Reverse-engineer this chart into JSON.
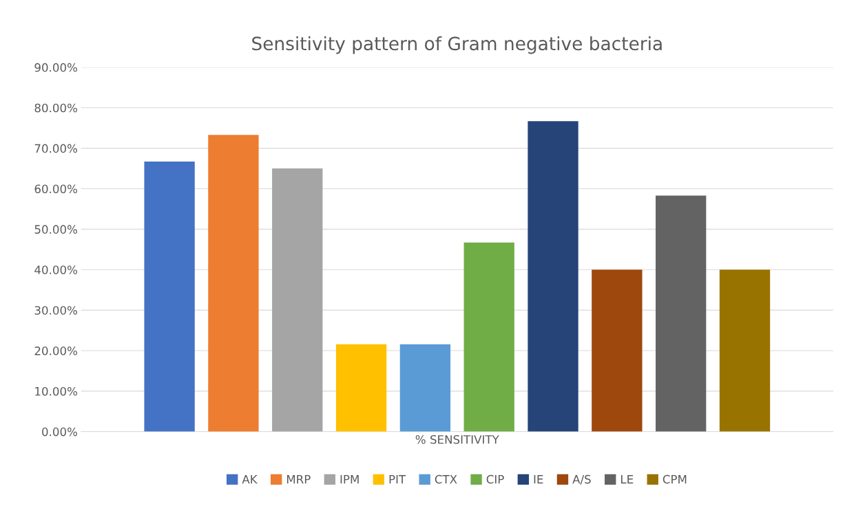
{
  "chart_data": {
    "type": "bar",
    "title": "Sensitivity pattern of Gram negative bacteria",
    "categories": [
      "% SENSITIVITY"
    ],
    "series": [
      {
        "name": "AK",
        "color": "#4472c4",
        "values": [
          66.7
        ]
      },
      {
        "name": "MRP",
        "color": "#ed7d31",
        "values": [
          73.3
        ]
      },
      {
        "name": "IPM",
        "color": "#a5a5a5",
        "values": [
          65.0
        ]
      },
      {
        "name": "PIT",
        "color": "#ffc000",
        "values": [
          21.6
        ]
      },
      {
        "name": "CTX",
        "color": "#5b9bd5",
        "values": [
          21.6
        ]
      },
      {
        "name": "CIP",
        "color": "#70ad47",
        "values": [
          46.7
        ]
      },
      {
        "name": "IE",
        "color": "#264478",
        "values": [
          76.7
        ]
      },
      {
        "name": "A/S",
        "color": "#9e480e",
        "values": [
          40.0
        ]
      },
      {
        "name": "LE",
        "color": "#636363",
        "values": [
          58.3
        ]
      },
      {
        "name": "CPM",
        "color": "#997300",
        "values": [
          40.0
        ]
      }
    ],
    "ylim": [
      0,
      90
    ],
    "yticks": [
      {
        "value": 0,
        "label": "0.00%"
      },
      {
        "value": 10,
        "label": "10.00%"
      },
      {
        "value": 20,
        "label": "20.00%"
      },
      {
        "value": 30,
        "label": "30.00%"
      },
      {
        "value": 40,
        "label": "40.00%"
      },
      {
        "value": 50,
        "label": "50.00%"
      },
      {
        "value": 60,
        "label": "60.00%"
      },
      {
        "value": 70,
        "label": "70.00%"
      },
      {
        "value": 80,
        "label": "80.00%"
      },
      {
        "value": 90,
        "label": "90.00%"
      }
    ],
    "grid": "y",
    "legend": "bottom"
  }
}
